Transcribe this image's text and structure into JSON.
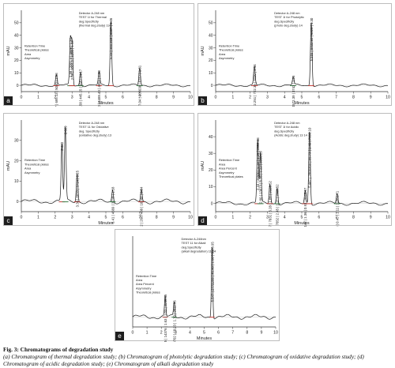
{
  "figure": {
    "title": "Fig. 3: Chromatograms of degradation study",
    "description": "(a) Chromatogram of thermal degradation study; (b) Chromatogram of photolytic degradation study; (c) Chromatogram of oxidative degradation study; (d) Chromatogram of acidic degradation study; (e) Chromatogram of alkali degradation study"
  },
  "chart_data": [
    {
      "type": "line",
      "panel": "a",
      "xlabel": "Minutes",
      "ylabel": "mAU",
      "xlim": [
        0,
        10
      ],
      "ylim": [
        -5,
        60
      ],
      "xticks": [
        0,
        1,
        2,
        3,
        4,
        5,
        6,
        7,
        8,
        9,
        10
      ],
      "yticks": [
        0,
        10,
        20,
        30,
        40,
        50
      ],
      "legend_lines": [
        "Detector A-248 nm",
        "TEST 1I for Thermal",
        "deg.Specificity",
        "(thermal deg.study) 13"
      ],
      "info_lines": [
        "Retention Time",
        "Theoretical plates",
        "Area",
        "Asymmetry"
      ],
      "peaks": [
        {
          "rt": 2.07,
          "height": 8,
          "label": "2.07 | 695.13 | 5040 | 1.18"
        },
        {
          "rt": 2.9,
          "height": 36,
          "label": "2.98 | 2001.4 | 4986 | 1.32"
        },
        {
          "rt": 3.0,
          "height": 34,
          "label": "2.96 | 1004.2 | 3290 | 1.19"
        },
        {
          "rt": 3.5,
          "height": 11,
          "label": "3.58 | 445.15 | 5587 | 1.17"
        },
        {
          "rt": 4.6,
          "height": 10,
          "label": "4.60 | 4489.40 | 4056 | 1.20"
        },
        {
          "rt": 5.3,
          "height": 52,
          "label": "5.33 | 102.315 | 6387 | 1.36"
        },
        {
          "rt": 7.0,
          "height": 14,
          "label": "7.04 | 205638 | 6167 | 1.31"
        }
      ]
    },
    {
      "type": "line",
      "panel": "b",
      "xlabel": "Minutes",
      "ylabel": "mAU",
      "xlim": [
        0,
        10
      ],
      "ylim": [
        -5,
        60
      ],
      "xticks": [
        0,
        1,
        2,
        3,
        4,
        5,
        6,
        7,
        8,
        9,
        10
      ],
      "yticks": [
        0,
        10,
        20,
        30,
        40,
        50
      ],
      "legend_lines": [
        "Detector A-248 nm",
        "TEST 1I for Photolytic",
        "deg.Specificity",
        "(photo deg.study) 14"
      ],
      "info_lines": [
        "Retention Time",
        "Theoretical plates",
        "Area",
        "Asymmetry"
      ],
      "peaks": [
        {
          "rt": 2.25,
          "height": 15,
          "label": "2.251 | 722.39 | 3330 | 1.14"
        },
        {
          "rt": 4.5,
          "height": 6,
          "label": "4.507 | 4572.39 | 3742 | 1.23"
        },
        {
          "rt": 5.55,
          "height": 52,
          "label": "5.555 | 8432.59 | 6326 | 1.30"
        }
      ]
    },
    {
      "type": "line",
      "panel": "c",
      "xlabel": "Minutes",
      "ylabel": "mAU",
      "xlim": [
        0,
        10
      ],
      "ylim": [
        -5,
        40
      ],
      "xticks": [
        0,
        1,
        2,
        3,
        4,
        5,
        6,
        7,
        8,
        9,
        10
      ],
      "yticks": [
        0,
        10,
        20,
        30
      ],
      "legend_lines": [
        "Detector A-248 nm",
        "TEST 11 for Oxidative",
        "deg. Specificity",
        "(oxidative deg.study) 13"
      ],
      "info_lines": [
        "Retention Time",
        "Theoretical plates",
        "Area",
        "Asymmetry"
      ],
      "peaks": [
        {
          "rt": 2.4,
          "height": 28,
          "label": "2.420"
        },
        {
          "rt": 2.6,
          "height": 36,
          "label": "2.609"
        },
        {
          "rt": 3.3,
          "height": 14,
          "label": "3.38 | 6033 | 3714 | 1.25"
        },
        {
          "rt": 5.4,
          "height": 6,
          "label": "5.41 | 4669 | 3718 | 1.18"
        },
        {
          "rt": 7.1,
          "height": 6,
          "label": "7.12 | 2687488 | 10244 | 0.84"
        }
      ]
    },
    {
      "type": "line",
      "panel": "d",
      "xlabel": "Minutes",
      "ylabel": "mAU",
      "xlim": [
        0,
        10
      ],
      "ylim": [
        -5,
        50
      ],
      "xticks": [
        0,
        1,
        2,
        3,
        4,
        5,
        6,
        7,
        8,
        9,
        10
      ],
      "yticks": [
        0,
        10,
        20,
        30,
        40
      ],
      "legend_lines": [
        "Detector A-248 nm",
        "TEST 1I for Acidic",
        "deg.Specificity",
        "(Acidic deg.study) 13 14"
      ],
      "info_lines": [
        "Retention Time",
        "Area",
        "Area Percent",
        "Asymmetry",
        "Theoretical plates"
      ],
      "peaks": [
        {
          "rt": 2.44,
          "height": 38,
          "label": "2.44 | 26500 | 6.28 | 1.25 | 2352.68"
        },
        {
          "rt": 2.6,
          "height": 30,
          "label": "2.60 | 13073 | 6.36 | 1.22 | 3360.29"
        },
        {
          "rt": 3.15,
          "height": 12,
          "label": "3.147 | 7031 | 5.28 | 1.06 | 2128.52"
        },
        {
          "rt": 3.57,
          "height": 10,
          "label": "3.57 | 7652 | 2.45 | 1.11 | 2505.52"
        },
        {
          "rt": 5.2,
          "height": 8,
          "label": "5.27 | 43142 | 1.36 | 0.93 | 9515.97"
        },
        {
          "rt": 5.45,
          "height": 44,
          "label": "5.447 | 2800460 | 85.73 | 1.40 | 7698.10"
        },
        {
          "rt": 7.05,
          "height": 6,
          "label": "7.051 | 13044 | 0.45 | 1.11 | 11062.71"
        }
      ]
    },
    {
      "type": "line",
      "panel": "e",
      "xlabel": "Minutes",
      "ylabel": "",
      "xlim": [
        0,
        10
      ],
      "ylim": [
        -5,
        40
      ],
      "xticks": [
        0,
        1,
        2,
        3,
        4,
        5,
        6,
        7,
        8,
        9,
        10
      ],
      "yticks": [],
      "legend_lines": [
        "Detector A-248nm",
        "TEST 11 for Alkali",
        "deg.Specificity",
        "(alkali degradation) 11 24"
      ],
      "info_lines": [
        "Retention Time",
        "Area",
        "Area Percent",
        "Asymmetry",
        "Theoretical plates"
      ],
      "peaks": [
        {
          "rt": 2.27,
          "height": 10,
          "label": "2.275 | 14376 | 1.63 | 1.03 | 4945.45"
        },
        {
          "rt": 2.9,
          "height": 7,
          "label": "2.896 | 803702 | 18.93 | 1.70 | 2611.66"
        },
        {
          "rt": 5.55,
          "height": 36,
          "label": "5.547 | 2772298 | 46.48 | 1.60 | 6363.95"
        }
      ]
    }
  ]
}
